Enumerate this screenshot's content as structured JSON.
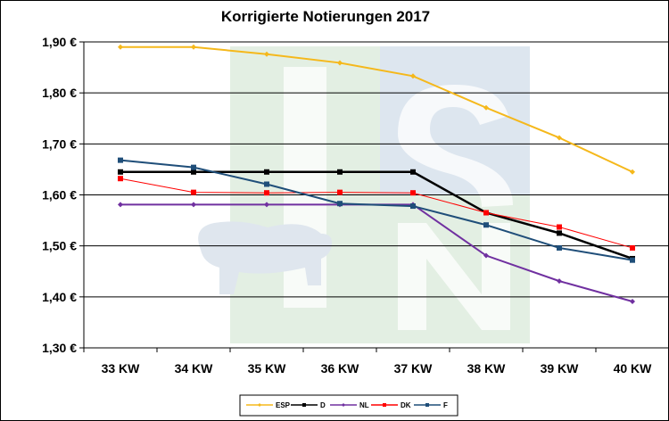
{
  "chart_data": {
    "type": "line",
    "title": "Korrigierte Notierungen 2017",
    "xlabel": "",
    "ylabel": "",
    "categories": [
      "33 KW",
      "34 KW",
      "35 KW",
      "36 KW",
      "37 KW",
      "38 KW",
      "39 KW",
      "40 KW"
    ],
    "y_ticks": [
      "1,30 €",
      "1,40 €",
      "1,50 €",
      "1,60 €",
      "1,70 €",
      "1,80 €",
      "1,90 €"
    ],
    "ylim": [
      1.3,
      1.95
    ],
    "grid": true,
    "legend_position": "bottom",
    "series": [
      {
        "name": "ESP",
        "color": "#f5b81b",
        "marker": "diamond",
        "values": [
          1.89,
          1.89,
          1.876,
          1.859,
          1.833,
          1.771,
          1.712,
          1.645
        ]
      },
      {
        "name": "D",
        "color": "#000000",
        "marker": "square",
        "values": [
          1.645,
          1.645,
          1.645,
          1.645,
          1.645,
          1.565,
          1.525,
          1.475
        ]
      },
      {
        "name": "NL",
        "color": "#7030a0",
        "marker": "diamond",
        "values": [
          1.581,
          1.581,
          1.581,
          1.581,
          1.581,
          1.481,
          1.431,
          1.391
        ]
      },
      {
        "name": "DK",
        "color": "#ff0000",
        "marker": "square",
        "values": [
          1.632,
          1.605,
          1.604,
          1.605,
          1.604,
          1.565,
          1.537,
          1.496
        ]
      },
      {
        "name": "F",
        "color": "#1f4e79",
        "marker": "square",
        "values": [
          1.668,
          1.654,
          1.621,
          1.583,
          1.578,
          1.541,
          1.496,
          1.472
        ]
      }
    ]
  }
}
